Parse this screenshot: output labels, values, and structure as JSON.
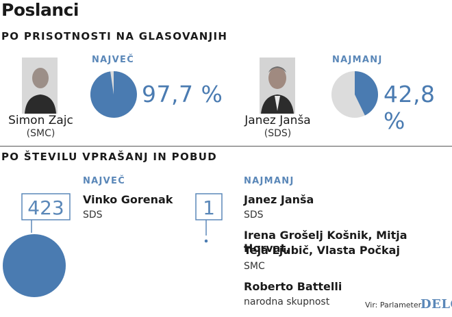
{
  "title": "Poslanci",
  "attendance": {
    "heading": "PO PRISOTNOSTI NA GLASOVANJIH",
    "most": {
      "label": "NAJVEČ",
      "name": "Simon Zajc",
      "party": "(SMC)",
      "value_text": "97,7 %"
    },
    "least": {
      "label": "NAJMANJ",
      "name": "Janez Janša",
      "party": "(SDS)",
      "value_text": "42,8 %"
    }
  },
  "questions": {
    "heading": "PO ŠTEVILU VPRAŠANJ IN POBUD",
    "most": {
      "label": "NAJVEČ",
      "count_text": "423",
      "people": [
        {
          "name": "Vinko Gorenak",
          "party": "SDS"
        }
      ]
    },
    "least": {
      "label": "NAJMANJ",
      "count_text": "1",
      "people": [
        {
          "name": "Janez Janša",
          "party": "SDS"
        },
        {
          "name_line1": "Irena Grošelj Košnik, Mitja Horvat,",
          "name_line2": "Teja Ljubič, Vlasta Počkaj",
          "party": "SMC"
        },
        {
          "name": "Roberto Battelli",
          "party": "narodna skupnost"
        }
      ]
    }
  },
  "source": "Vir: Parlameter",
  "logo": "DELO",
  "colors": {
    "accent": "#4a7bb1",
    "pie_bg": "#dcdcdc",
    "label": "#5a87b8"
  },
  "chart_data": [
    {
      "type": "pie",
      "title": "",
      "slices": [
        {
          "label": "Simon Zajc",
          "value": 97.7
        },
        {
          "label": "",
          "value": 2.3
        }
      ]
    },
    {
      "type": "pie",
      "title": "",
      "slices": [
        {
          "label": "Janez Janša",
          "value": 42.8
        },
        {
          "label": "",
          "value": 57.2
        }
      ]
    },
    {
      "type": "bubble",
      "categories": [
        "Vinko Gorenak",
        "Janez Janša"
      ],
      "values": [
        423,
        1
      ]
    }
  ]
}
